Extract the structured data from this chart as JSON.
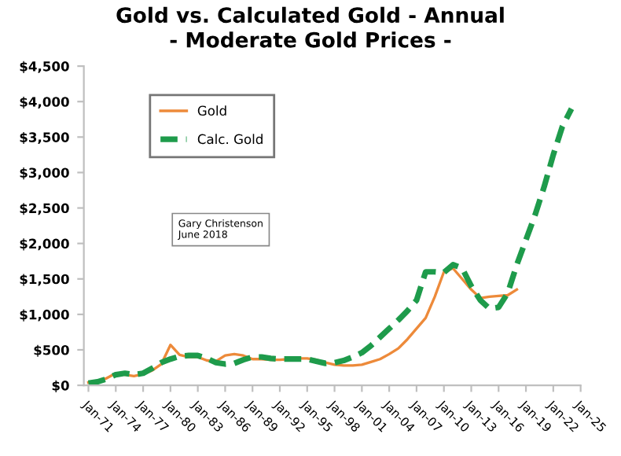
{
  "chart_data": {
    "type": "line",
    "title": "Gold vs. Calculated Gold - Annual\n- Moderate Gold Prices -",
    "x": [
      "1971-01",
      "1972-01",
      "1973-01",
      "1974-01",
      "1975-01",
      "1976-01",
      "1977-01",
      "1978-01",
      "1979-01",
      "1980-01",
      "1981-01",
      "1982-01",
      "1983-01",
      "1984-01",
      "1985-01",
      "1986-01",
      "1987-01",
      "1988-01",
      "1989-01",
      "1990-01",
      "1991-01",
      "1992-01",
      "1993-01",
      "1994-01",
      "1995-01",
      "1996-01",
      "1997-01",
      "1998-01",
      "1999-01",
      "2000-01",
      "2001-01",
      "2002-01",
      "2003-01",
      "2004-01",
      "2005-01",
      "2006-01",
      "2007-01",
      "2008-01",
      "2009-01",
      "2010-01",
      "2011-01",
      "2012-01",
      "2013-01",
      "2014-01",
      "2015-01",
      "2016-01",
      "2017-01",
      "2018-01",
      "2019-01",
      "2020-01",
      "2021-01",
      "2022-01",
      "2023-01",
      "2024-01"
    ],
    "series": [
      {
        "name": "Gold",
        "color": "#ed8a3a",
        "line_style": "solid",
        "values": [
          40,
          60,
          100,
          170,
          150,
          130,
          160,
          210,
          300,
          570,
          430,
          400,
          400,
          350,
          340,
          420,
          440,
          420,
          370,
          370,
          360,
          360,
          370,
          380,
          380,
          360,
          320,
          290,
          280,
          280,
          290,
          330,
          370,
          440,
          520,
          650,
          800,
          950,
          1250,
          1600,
          1650,
          1500,
          1350,
          1230,
          1250,
          1260,
          1270,
          1350,
          null,
          null,
          null,
          null,
          null,
          null
        ]
      },
      {
        "name": "Calc. Gold",
        "color": "#1e9b4b",
        "line_style": "dashed",
        "values": [
          30,
          50,
          90,
          150,
          170,
          150,
          170,
          240,
          320,
          370,
          410,
          420,
          420,
          380,
          320,
          300,
          310,
          360,
          400,
          400,
          380,
          370,
          370,
          370,
          370,
          340,
          310,
          320,
          350,
          400,
          460,
          560,
          680,
          800,
          920,
          1050,
          1200,
          1600,
          1600,
          1590,
          1700,
          1650,
          1400,
          1200,
          1080,
          1100,
          1300,
          1700,
          2050,
          2400,
          2800,
          3250,
          3650,
          3900
        ]
      }
    ],
    "xlim": [
      "1970-07",
      "2025-01"
    ],
    "xticks": [
      {
        "value": "1971-01",
        "label": "Jan-71"
      },
      {
        "value": "1974-01",
        "label": "Jan-74"
      },
      {
        "value": "1977-01",
        "label": "Jan-77"
      },
      {
        "value": "1980-01",
        "label": "Jan-80"
      },
      {
        "value": "1983-01",
        "label": "Jan-83"
      },
      {
        "value": "1986-01",
        "label": "Jan-86"
      },
      {
        "value": "1989-01",
        "label": "Jan-89"
      },
      {
        "value": "1992-01",
        "label": "Jan-92"
      },
      {
        "value": "1995-01",
        "label": "Jan-95"
      },
      {
        "value": "1998-01",
        "label": "Jan-98"
      },
      {
        "value": "2001-01",
        "label": "Jan-01"
      },
      {
        "value": "2004-01",
        "label": "Jan-04"
      },
      {
        "value": "2007-01",
        "label": "Jan-07"
      },
      {
        "value": "2010-01",
        "label": "Jan-10"
      },
      {
        "value": "2013-01",
        "label": "Jan-13"
      },
      {
        "value": "2016-01",
        "label": "Jan-16"
      },
      {
        "value": "2019-01",
        "label": "Jan-19"
      },
      {
        "value": "2022-01",
        "label": "Jan-22"
      },
      {
        "value": "2025-01",
        "label": "Jan-25"
      }
    ],
    "ylim": [
      0,
      4500
    ],
    "yticks": [
      {
        "value": 0,
        "label": "$0"
      },
      {
        "value": 500,
        "label": "$500"
      },
      {
        "value": 1000,
        "label": "$1,000"
      },
      {
        "value": 1500,
        "label": "$1,500"
      },
      {
        "value": 2000,
        "label": "$2,000"
      },
      {
        "value": 2500,
        "label": "$2,500"
      },
      {
        "value": 3000,
        "label": "$3,000"
      },
      {
        "value": 3500,
        "label": "$3,500"
      },
      {
        "value": 4000,
        "label": "$4,000"
      },
      {
        "value": 4500,
        "label": "$4,500"
      }
    ],
    "grid": false,
    "legend": "top left",
    "marker": "none",
    "annotations": [
      "Gary Christenson\nJune 2018"
    ]
  }
}
